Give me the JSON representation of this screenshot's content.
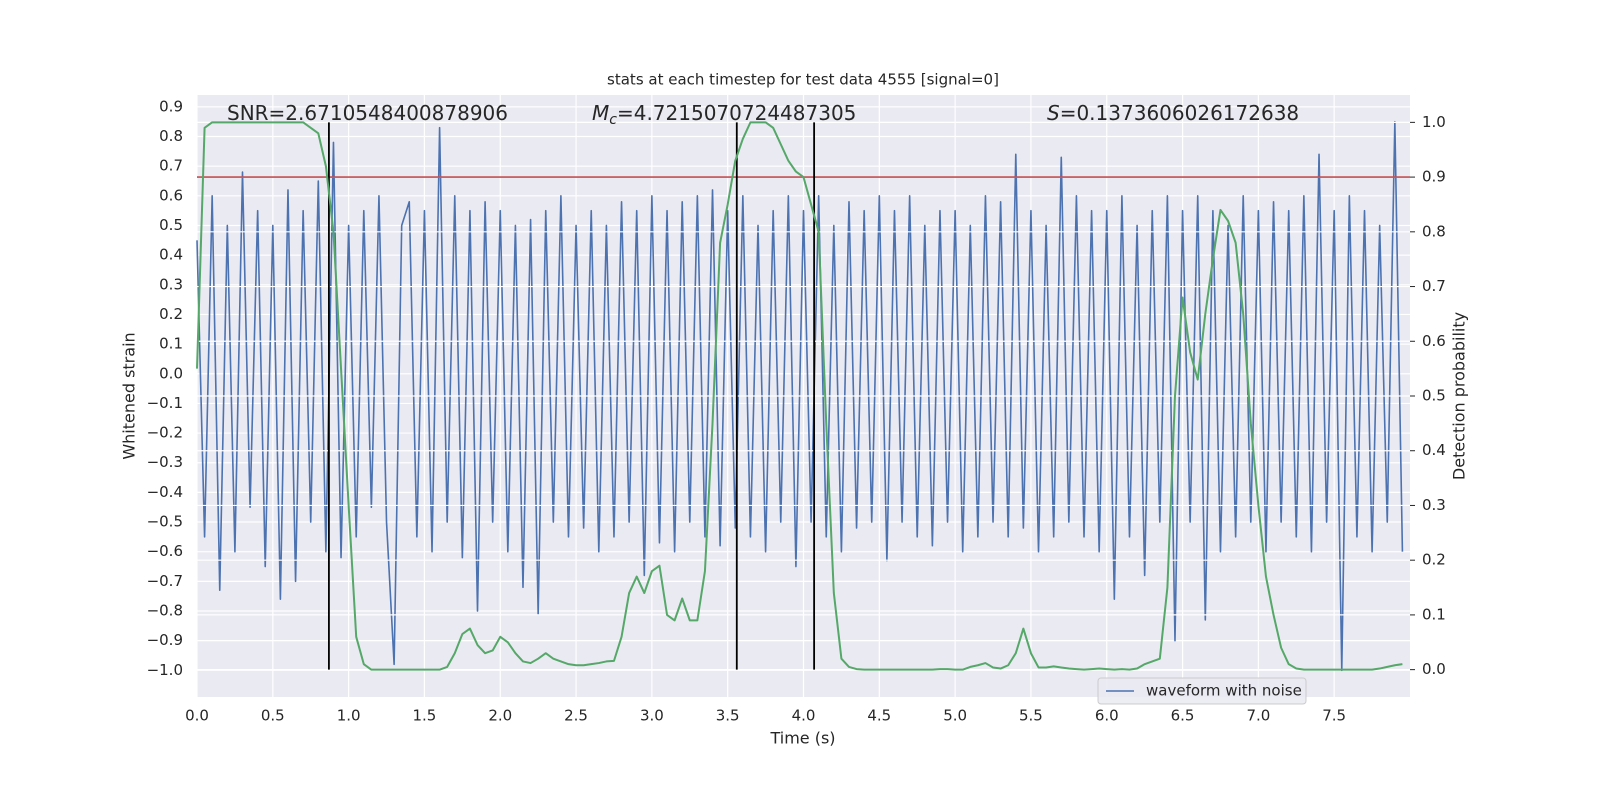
{
  "chart_data": {
    "type": "line",
    "title": "stats at each timestep for test data 4555 [signal=0]",
    "xlabel": "Time (s)",
    "ylabel": "Whitened strain",
    "y2label": "Detection probability",
    "annotations": [
      {
        "text": "SNR=2.6710548400878906"
      },
      {
        "symbol": "M",
        "subscript": "c",
        "text": "=4.7215070724487305"
      },
      {
        "symbol": "S",
        "text": "=0.1373606026172638"
      }
    ],
    "xlim": [
      0,
      8.0
    ],
    "xticks": [
      {
        "value": 0,
        "label": "0.0"
      },
      0.5,
      {
        "value": 1,
        "label": "1.0"
      },
      1.5,
      {
        "value": 2,
        "label": "2.0"
      },
      2.5,
      {
        "value": 3,
        "label": "3.0"
      },
      3.5,
      {
        "value": 4,
        "label": "4.0"
      },
      4.5,
      {
        "value": 5,
        "label": "5.0"
      },
      5.5,
      {
        "value": 6,
        "label": "6.0"
      },
      6.5,
      {
        "value": 7,
        "label": "7.0"
      },
      7.5
    ],
    "ylim": [
      -1.09,
      0.94
    ],
    "yticks": [
      {
        "value": -1.0,
        "label": "−1.0"
      },
      {
        "value": -0.9,
        "label": "−0.9"
      },
      {
        "value": -0.8,
        "label": "−0.8"
      },
      {
        "value": -0.7,
        "label": "−0.7"
      },
      {
        "value": -0.6,
        "label": "−0.6"
      },
      {
        "value": -0.5,
        "label": "−0.5"
      },
      {
        "value": -0.4,
        "label": "−0.4"
      },
      {
        "value": -0.3,
        "label": "−0.3"
      },
      {
        "value": -0.2,
        "label": "−0.2"
      },
      {
        "value": -0.1,
        "label": "−0.1"
      },
      {
        "value": 0,
        "label": "0.0"
      },
      0.1,
      0.2,
      0.3,
      0.4,
      0.5,
      0.6,
      0.7,
      0.8,
      0.9
    ],
    "y2lim": [
      -0.05,
      1.05
    ],
    "y2ticks": [
      {
        "value": 0,
        "label": "0.0"
      },
      0.1,
      0.2,
      0.3,
      0.4,
      0.5,
      0.6,
      0.7,
      0.8,
      0.9,
      {
        "value": 1,
        "label": "1.0"
      }
    ],
    "grid": true,
    "legend": "lower right",
    "x": [
      0,
      0.05,
      0.1,
      0.15,
      0.2,
      0.25,
      0.3,
      0.35,
      0.4,
      0.45,
      0.5,
      0.55,
      0.6,
      0.65,
      0.7,
      0.75,
      0.8,
      0.85,
      0.9,
      0.95,
      1,
      1.05,
      1.1,
      1.15,
      1.2,
      1.25,
      1.3,
      1.35,
      1.4,
      1.45,
      1.5,
      1.55,
      1.6,
      1.65,
      1.7,
      1.75,
      1.8,
      1.85,
      1.9,
      1.95,
      2,
      2.05,
      2.1,
      2.15,
      2.2,
      2.25,
      2.3,
      2.35,
      2.4,
      2.45,
      2.5,
      2.55,
      2.6,
      2.65,
      2.7,
      2.75,
      2.8,
      2.85,
      2.9,
      2.95,
      3,
      3.05,
      3.1,
      3.15,
      3.2,
      3.25,
      3.3,
      3.35,
      3.4,
      3.45,
      3.5,
      3.55,
      3.6,
      3.65,
      3.7,
      3.75,
      3.8,
      3.85,
      3.9,
      3.95,
      4,
      4.05,
      4.1,
      4.15,
      4.2,
      4.25,
      4.3,
      4.35,
      4.4,
      4.45,
      4.5,
      4.55,
      4.6,
      4.65,
      4.7,
      4.75,
      4.8,
      4.85,
      4.9,
      4.95,
      5,
      5.05,
      5.1,
      5.15,
      5.2,
      5.25,
      5.3,
      5.35,
      5.4,
      5.45,
      5.5,
      5.55,
      5.6,
      5.65,
      5.7,
      5.75,
      5.8,
      5.85,
      5.9,
      5.95,
      6,
      6.05,
      6.1,
      6.15,
      6.2,
      6.25,
      6.3,
      6.35,
      6.4,
      6.45,
      6.5,
      6.55,
      6.6,
      6.65,
      6.7,
      6.75,
      6.8,
      6.85,
      6.9,
      6.95,
      7,
      7.05,
      7.1,
      7.15,
      7.2,
      7.25,
      7.3,
      7.35,
      7.4,
      7.45,
      7.5,
      7.55,
      7.6,
      7.65,
      7.7,
      7.75,
      7.8,
      7.85,
      7.9,
      7.95
    ],
    "series": [
      {
        "name": "waveform with noise",
        "color": "#4c72b0",
        "axis": "y",
        "values": [
          0.45,
          -0.55,
          0.6,
          -0.73,
          0.5,
          -0.6,
          0.68,
          -0.45,
          0.55,
          -0.65,
          0.5,
          -0.76,
          0.62,
          -0.7,
          0.55,
          -0.5,
          0.65,
          -0.6,
          0.78,
          -0.62,
          0.5,
          -0.55,
          0.55,
          -0.45,
          0.6,
          -0.5,
          -0.98,
          0.5,
          0.58,
          -0.55,
          0.55,
          -0.6,
          0.83,
          -0.5,
          0.6,
          -0.62,
          0.55,
          -0.8,
          0.58,
          -0.5,
          0.55,
          -0.6,
          0.5,
          -0.72,
          0.52,
          -0.81,
          0.55,
          -0.5,
          0.6,
          -0.55,
          0.5,
          -0.52,
          0.55,
          -0.6,
          0.5,
          -0.55,
          0.58,
          -0.5,
          0.55,
          -0.68,
          0.6,
          -0.57,
          0.55,
          -0.6,
          0.58,
          -0.5,
          0.6,
          -0.55,
          0.62,
          -0.58,
          0.55,
          -0.52,
          0.6,
          -0.55,
          0.5,
          -0.6,
          0.55,
          -0.5,
          0.6,
          -0.65,
          0.55,
          -0.5,
          0.6,
          -0.55,
          0.5,
          -0.6,
          0.58,
          -0.52,
          0.55,
          -0.5,
          0.6,
          -0.63,
          0.55,
          -0.5,
          0.6,
          -0.55,
          0.5,
          -0.58,
          0.55,
          -0.5,
          0.55,
          -0.6,
          0.5,
          -0.55,
          0.6,
          -0.5,
          0.58,
          -0.55,
          0.74,
          -0.52,
          0.55,
          -0.6,
          0.5,
          -0.55,
          0.73,
          -0.5,
          0.6,
          -0.55,
          0.55,
          -0.6,
          0.55,
          -0.76,
          0.6,
          -0.55,
          0.5,
          -0.68,
          0.55,
          -0.5,
          0.6,
          -0.9,
          0.55,
          -0.5,
          0.6,
          -0.83,
          0.55,
          -0.6,
          0.5,
          -0.55,
          0.6,
          -0.5,
          0.55,
          -0.6,
          0.58,
          -0.5,
          0.55,
          -0.55,
          0.6,
          -0.6,
          0.74,
          -0.5,
          0.55,
          -1.0,
          0.6,
          -0.55,
          0.55,
          -0.6,
          0.5,
          -0.5,
          0.85,
          -0.6
        ]
      },
      {
        "color": "#55a868",
        "axis": "y2",
        "values": [
          0.55,
          0.99,
          1.0,
          1.0,
          1.0,
          1.0,
          1.0,
          1.0,
          1.0,
          1.0,
          1.0,
          1.0,
          1.0,
          1.0,
          1.0,
          0.99,
          0.98,
          0.92,
          0.8,
          0.55,
          0.3,
          0.06,
          0.01,
          0.0,
          0.0,
          0.0,
          0.0,
          0.0,
          0.0,
          0.0,
          0.0,
          0.0,
          0.0,
          0.005,
          0.03,
          0.065,
          0.075,
          0.045,
          0.03,
          0.035,
          0.06,
          0.05,
          0.03,
          0.015,
          0.012,
          0.02,
          0.03,
          0.02,
          0.015,
          0.01,
          0.008,
          0.008,
          0.01,
          0.012,
          0.015,
          0.016,
          0.06,
          0.14,
          0.17,
          0.14,
          0.18,
          0.19,
          0.1,
          0.09,
          0.13,
          0.09,
          0.09,
          0.18,
          0.45,
          0.78,
          0.85,
          0.93,
          0.97,
          1.0,
          1.0,
          1.0,
          0.99,
          0.96,
          0.93,
          0.91,
          0.9,
          0.85,
          0.8,
          0.45,
          0.14,
          0.02,
          0.005,
          0.001,
          0.0,
          0.0,
          0.0,
          0.0,
          0.0,
          0.0,
          0.0,
          0.0,
          0.0,
          0.0,
          0.001,
          0.001,
          0.0,
          0.0,
          0.005,
          0.008,
          0.012,
          0.004,
          0.002,
          0.008,
          0.03,
          0.075,
          0.03,
          0.004,
          0.004,
          0.006,
          0.004,
          0.002,
          0.001,
          0.0,
          0.001,
          0.002,
          0.001,
          0.0,
          0.001,
          0.0,
          0.002,
          0.01,
          0.015,
          0.02,
          0.15,
          0.5,
          0.68,
          0.58,
          0.53,
          0.65,
          0.75,
          0.84,
          0.82,
          0.78,
          0.65,
          0.45,
          0.3,
          0.17,
          0.1,
          0.04,
          0.01,
          0.002,
          0.0,
          0.0,
          0.0,
          0.0,
          0.0,
          0.0,
          0.0,
          0.0,
          0.0,
          0.0,
          0.002,
          0.005,
          0.008,
          0.01
        ]
      }
    ],
    "hlines": [
      {
        "value": 0.9,
        "axis": "y2",
        "color": "#c44e52"
      }
    ],
    "vlines": {
      "x": [
        0.87,
        3.56,
        4.07
      ],
      "y2range": [
        0,
        1
      ],
      "color": "#000000"
    }
  }
}
